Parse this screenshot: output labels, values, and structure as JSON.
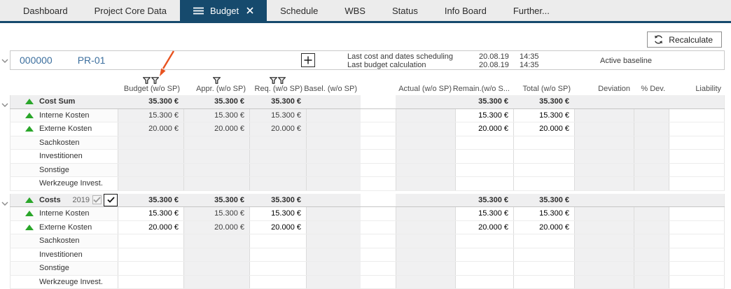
{
  "colors": {
    "accent_navy": "#164a6d",
    "indicator_green": "#2aa62a",
    "annotation_orange": "#e85320",
    "project_blue": "#3c6f9e"
  },
  "tabs": [
    {
      "label": "Dashboard",
      "active": false
    },
    {
      "label": "Project Core Data",
      "active": false
    },
    {
      "label": "Budget",
      "active": true,
      "has_menu_icon": true,
      "closable": true
    },
    {
      "label": "Schedule",
      "active": false
    },
    {
      "label": "WBS",
      "active": false
    },
    {
      "label": "Status",
      "active": false
    },
    {
      "label": "Info Board",
      "active": false
    },
    {
      "label": "Further...",
      "active": false
    }
  ],
  "toolbar": {
    "recalculate_label": "Recalculate"
  },
  "project": {
    "number": "000000",
    "code": "PR-01",
    "info": [
      {
        "label": "Last cost and dates scheduling",
        "date": "20.08.19",
        "time": "14:35"
      },
      {
        "label": "Last budget calculation",
        "date": "20.08.19",
        "time": "14:35"
      }
    ],
    "baseline_status": "Active baseline"
  },
  "table": {
    "columns": [
      {
        "key": "budget",
        "label": "Budget (w/o SP)",
        "filter_icons": 2
      },
      {
        "key": "appr",
        "label": "Appr. (w/o SP)",
        "filter_icons": 1
      },
      {
        "key": "req",
        "label": "Req. (w/o SP)",
        "filter_icons": 2
      },
      {
        "key": "basel",
        "label": "Basel. (w/o SP)",
        "filter_icons": 0
      },
      {
        "key": "actual",
        "label": "Actual (w/o SP)",
        "filter_icons": 0
      },
      {
        "key": "remain",
        "label": "Remain.(w/o S...",
        "filter_icons": 0
      },
      {
        "key": "total",
        "label": "Total (w/o SP)",
        "filter_icons": 0
      },
      {
        "key": "deviation",
        "label": "Deviation",
        "filter_icons": 0
      },
      {
        "key": "pdev",
        "label": "% Dev.",
        "filter_icons": 0
      },
      {
        "key": "liability",
        "label": "Liability",
        "filter_icons": 0
      }
    ],
    "groups": [
      {
        "label": "Cost Sum",
        "indicator": true,
        "editable_columns": [
          "remain",
          "total"
        ],
        "values": {
          "budget": "35.300 €",
          "appr": "35.300 €",
          "req": "35.300 €",
          "remain": "35.300 €",
          "total": "35.300 €"
        },
        "rows": [
          {
            "label": "Interne Kosten",
            "indicator": true,
            "values": {
              "budget": "15.300 €",
              "appr": "15.300 €",
              "req": "15.300 €",
              "remain": "15.300 €",
              "total": "15.300 €"
            }
          },
          {
            "label": "Externe Kosten",
            "indicator": true,
            "values": {
              "budget": "20.000 €",
              "appr": "20.000 €",
              "req": "20.000 €",
              "remain": "20.000 €",
              "total": "20.000 €"
            }
          },
          {
            "label": "Sachkosten",
            "indicator": false,
            "values": {}
          },
          {
            "label": "Investitionen",
            "indicator": false,
            "values": {}
          },
          {
            "label": "Sonstige",
            "indicator": false,
            "values": {}
          },
          {
            "label": "Werkzeuge Invest.",
            "indicator": false,
            "values": {}
          }
        ]
      },
      {
        "label": "Costs",
        "year": "2019",
        "indicator": true,
        "checkbox_disabled_checked": true,
        "checkbox_main_checked": true,
        "editable_columns": [
          "budget",
          "req",
          "remain",
          "total"
        ],
        "values": {
          "budget": "35.300 €",
          "appr": "35.300 €",
          "req": "35.300 €",
          "remain": "35.300 €",
          "total": "35.300 €"
        },
        "rows": [
          {
            "label": "Interne Kosten",
            "indicator": true,
            "values": {
              "budget": "15.300 €",
              "appr": "15.300 €",
              "req": "15.300 €",
              "remain": "15.300 €",
              "total": "15.300 €"
            }
          },
          {
            "label": "Externe Kosten",
            "indicator": true,
            "values": {
              "budget": "20.000 €",
              "appr": "20.000 €",
              "req": "20.000 €",
              "remain": "20.000 €",
              "total": "20.000 €"
            }
          },
          {
            "label": "Sachkosten",
            "indicator": false,
            "values": {}
          },
          {
            "label": "Investitionen",
            "indicator": false,
            "values": {}
          },
          {
            "label": "Sonstige",
            "indicator": false,
            "values": {}
          },
          {
            "label": "Werkzeuge Invest.",
            "indicator": false,
            "values": {}
          }
        ]
      }
    ]
  }
}
